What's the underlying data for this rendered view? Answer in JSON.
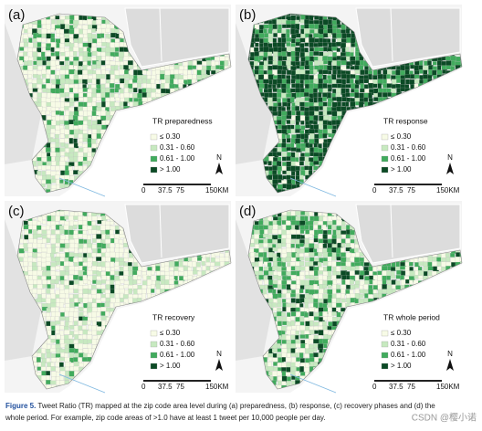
{
  "panels": [
    {
      "label": "(a)",
      "legend_title": "TR preparedness"
    },
    {
      "label": "(b)",
      "legend_title": "TR response"
    },
    {
      "label": "(c)",
      "legend_title": "TR recovery"
    },
    {
      "label": "(d)",
      "legend_title": "TR whole period"
    }
  ],
  "legend_items": [
    "≤ 0.30",
    "0.31 - 0.60",
    "0.61 - 1.00",
    "> 1.00"
  ],
  "scale_labels": [
    "0",
    "37.5",
    "75",
    "150KM"
  ],
  "north": "N",
  "caption": {
    "label": "Figure 5.",
    "line1": "Tweet Ratio (TR) mapped at the zip code area level during (a) preparedness, (b) response, (c) recovery phases and (d) the",
    "line2": "whole period. For example, zip code areas of >1.0 have at least 1 tweet per 10,000 people per day."
  },
  "watermark": "CSDN @樱小诺"
}
